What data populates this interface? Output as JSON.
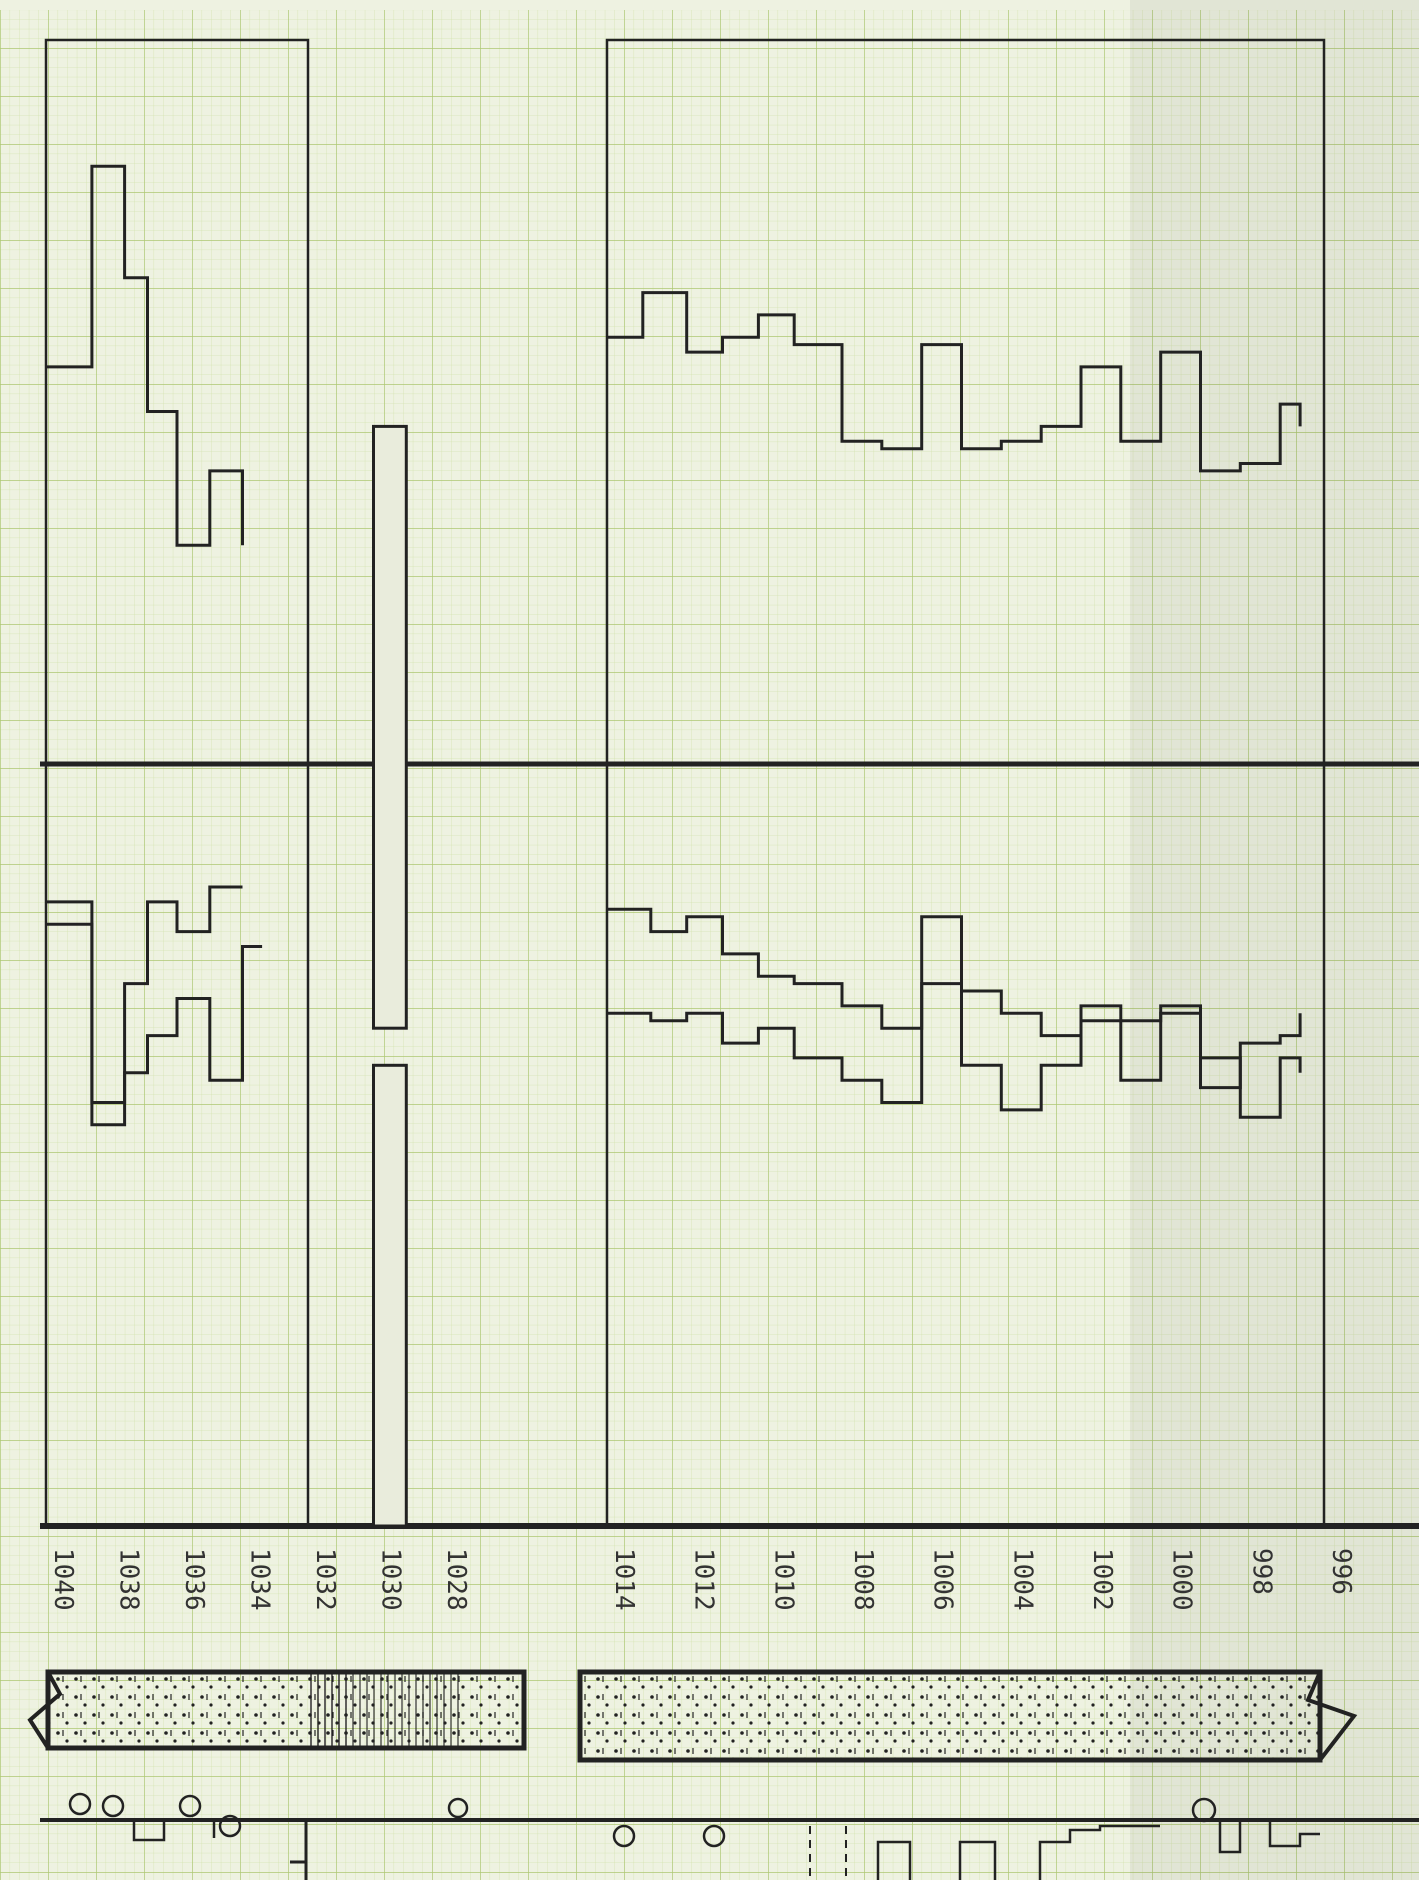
{
  "colors": {
    "paper": "#eef2e1",
    "grid_minor": "#cfe0a8",
    "grid_major": "#a9c36b",
    "ink": "#222222",
    "column_fill": "#e9ecdc"
  },
  "chart_data": [
    {
      "type": "line",
      "step": true,
      "orientation": "rotated-90",
      "x_axis_label": "",
      "title": "",
      "x_ticks": [
        "1040",
        "1038",
        "1036",
        "1034",
        "1032",
        "1030",
        "1028"
      ],
      "xlim": [
        1040,
        1027
      ],
      "series": [
        {
          "points": [
            [
              1040,
              22
            ],
            [
              1038.6,
              22
            ],
            [
              1038.6,
              8.5
            ],
            [
              1037.6,
              8.5
            ],
            [
              1037.6,
              16
            ],
            [
              1036.9,
              16
            ],
            [
              1036.9,
              25
            ],
            [
              1036,
              25
            ],
            [
              1036,
              34
            ],
            [
              1035,
              34
            ],
            [
              1035,
              29
            ],
            [
              1034,
              29
            ],
            [
              1034,
              34
            ]
          ]
        },
        {
          "points": [
            [
              1040,
              58
            ],
            [
              1038.6,
              58
            ],
            [
              1038.6,
              73
            ],
            [
              1037.6,
              73
            ],
            [
              1037.6,
              69.5
            ],
            [
              1036.9,
              69.5
            ],
            [
              1036.9,
              67
            ],
            [
              1036,
              67
            ],
            [
              1036,
              64.5
            ],
            [
              1035,
              64.5
            ],
            [
              1035,
              70
            ],
            [
              1034,
              70
            ],
            [
              1034,
              61
            ],
            [
              1033.4,
              61
            ]
          ]
        },
        {
          "points": [
            [
              1040,
              59.5
            ],
            [
              1038.6,
              59.5
            ],
            [
              1038.6,
              71.5
            ],
            [
              1037.6,
              71.5
            ],
            [
              1037.6,
              63.5
            ],
            [
              1036.9,
              63.5
            ],
            [
              1036.9,
              58
            ],
            [
              1036,
              58
            ],
            [
              1036,
              60
            ],
            [
              1035,
              60
            ],
            [
              1035,
              57
            ],
            [
              1034,
              57
            ]
          ]
        }
      ],
      "bars": [
        {
          "x0": 1030,
          "x1": 1029,
          "y0": 26,
          "y1": 66.5
        },
        {
          "x0": 1030,
          "x1": 1029,
          "y0": 69,
          "y1": 100
        }
      ]
    },
    {
      "type": "line",
      "step": true,
      "orientation": "rotated-90",
      "x_axis_label": "",
      "title": "",
      "x_ticks": [
        "1014",
        "1012",
        "1010",
        "1008",
        "1006",
        "1004",
        "1002",
        "1000",
        "998",
        "996"
      ],
      "xlim": [
        1014,
        996
      ],
      "series": [
        {
          "points": [
            [
              1014,
              20
            ],
            [
              1013.1,
              20
            ],
            [
              1013.1,
              17
            ],
            [
              1012,
              17
            ],
            [
              1012,
              21
            ],
            [
              1011.1,
              21
            ],
            [
              1011.1,
              20
            ],
            [
              1010.2,
              20
            ],
            [
              1010.2,
              18.5
            ],
            [
              1009.3,
              18.5
            ],
            [
              1009.3,
              20.5
            ],
            [
              1008.1,
              20.5
            ],
            [
              1008.1,
              27
            ],
            [
              1007.1,
              27
            ],
            [
              1007.1,
              27.5
            ],
            [
              1006.1,
              27.5
            ],
            [
              1006.1,
              20.5
            ],
            [
              1005.1,
              20.5
            ],
            [
              1005.1,
              27.5
            ],
            [
              1004.1,
              27.5
            ],
            [
              1004.1,
              27
            ],
            [
              1003.1,
              27
            ],
            [
              1003.1,
              26
            ],
            [
              1002.1,
              26
            ],
            [
              1002.1,
              22
            ],
            [
              1001.1,
              22
            ],
            [
              1001.1,
              27
            ],
            [
              1000.1,
              27
            ],
            [
              1000.1,
              21
            ],
            [
              999.1,
              21
            ],
            [
              999.1,
              29
            ],
            [
              998.1,
              29
            ],
            [
              998.1,
              28.5
            ],
            [
              997.1,
              28.5
            ],
            [
              997.1,
              24.5
            ],
            [
              996.6,
              24.5
            ],
            [
              996.6,
              26
            ]
          ]
        },
        {
          "points": [
            [
              1014,
              58.5
            ],
            [
              1012.9,
              58.5
            ],
            [
              1012.9,
              60
            ],
            [
              1012,
              60
            ],
            [
              1012,
              59
            ],
            [
              1011.1,
              59
            ],
            [
              1011.1,
              61.5
            ],
            [
              1010.2,
              61.5
            ],
            [
              1010.2,
              63
            ],
            [
              1009.3,
              63
            ],
            [
              1009.3,
              63.5
            ],
            [
              1008.1,
              63.5
            ],
            [
              1008.1,
              65
            ],
            [
              1007.1,
              65
            ],
            [
              1007.1,
              66.5
            ],
            [
              1006.1,
              66.5
            ],
            [
              1006.1,
              63.5
            ],
            [
              1005.1,
              63.5
            ],
            [
              1005.1,
              64
            ],
            [
              1004.1,
              64
            ],
            [
              1004.1,
              65.5
            ],
            [
              1003.1,
              65.5
            ],
            [
              1003.1,
              67
            ],
            [
              1002.1,
              67
            ],
            [
              1002.1,
              65
            ],
            [
              1001.1,
              65
            ],
            [
              1001.1,
              66
            ],
            [
              1000.1,
              66
            ],
            [
              1000.1,
              65
            ],
            [
              999.1,
              65
            ],
            [
              999.1,
              70.5
            ],
            [
              998.1,
              70.5
            ],
            [
              998.1,
              67.5
            ],
            [
              997.1,
              67.5
            ],
            [
              997.1,
              67
            ],
            [
              996.6,
              67
            ],
            [
              996.6,
              65.5
            ]
          ]
        },
        {
          "points": [
            [
              1014,
              65.5
            ],
            [
              1012.9,
              65.5
            ],
            [
              1012.9,
              66
            ],
            [
              1012,
              66
            ],
            [
              1012,
              65.5
            ],
            [
              1011.1,
              65.5
            ],
            [
              1011.1,
              67.5
            ],
            [
              1010.2,
              67.5
            ],
            [
              1010.2,
              66.5
            ],
            [
              1009.3,
              66.5
            ],
            [
              1009.3,
              68.5
            ],
            [
              1008.1,
              68.5
            ],
            [
              1008.1,
              70
            ],
            [
              1007.1,
              70
            ],
            [
              1007.1,
              71.5
            ],
            [
              1006.1,
              71.5
            ],
            [
              1006.1,
              59
            ],
            [
              1005.1,
              59
            ],
            [
              1005.1,
              69
            ],
            [
              1004.1,
              69
            ],
            [
              1004.1,
              72
            ],
            [
              1003.1,
              72
            ],
            [
              1003.1,
              69
            ],
            [
              1002.1,
              69
            ],
            [
              1002.1,
              66
            ],
            [
              1001.1,
              66
            ],
            [
              1001.1,
              70
            ],
            [
              1000.1,
              70
            ],
            [
              1000.1,
              65.5
            ],
            [
              999.1,
              65.5
            ],
            [
              999.1,
              68.5
            ],
            [
              998.1,
              68.5
            ],
            [
              998.1,
              72.5
            ],
            [
              997.1,
              72.5
            ],
            [
              997.1,
              68.5
            ],
            [
              996.6,
              68.5
            ],
            [
              996.6,
              69.5
            ]
          ]
        }
      ]
    }
  ],
  "strip_log": {
    "sections": [
      {
        "x0": 1040,
        "x1": 1027,
        "pattern": "dotted"
      },
      {
        "x0": 1014,
        "x1": 996,
        "pattern": "dotted"
      }
    ]
  }
}
